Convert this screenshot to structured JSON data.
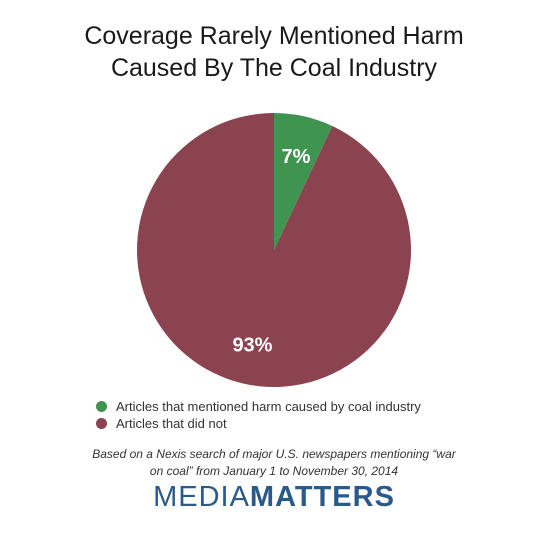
{
  "chart_data": {
    "type": "pie",
    "title_lines": [
      "Coverage Rarely Mentioned Harm",
      "Caused By The Coal Industry"
    ],
    "slices": [
      {
        "label": "Articles that mentioned harm caused by coal industry",
        "value": 7,
        "display": "7%",
        "color": "#3f9450"
      },
      {
        "label": "Articles that did not",
        "value": 93,
        "display": "93%",
        "color": "#8b4350"
      }
    ],
    "legend_position": "bottom",
    "note_lines": [
      "Based on a Nexis search of major U.S. newspapers mentioning “war",
      "on coal” from January 1 to November 30, 2014"
    ]
  },
  "logo": {
    "part1": "MEDIA",
    "part2": "MATTERS",
    "color": "#2a5a8a"
  }
}
